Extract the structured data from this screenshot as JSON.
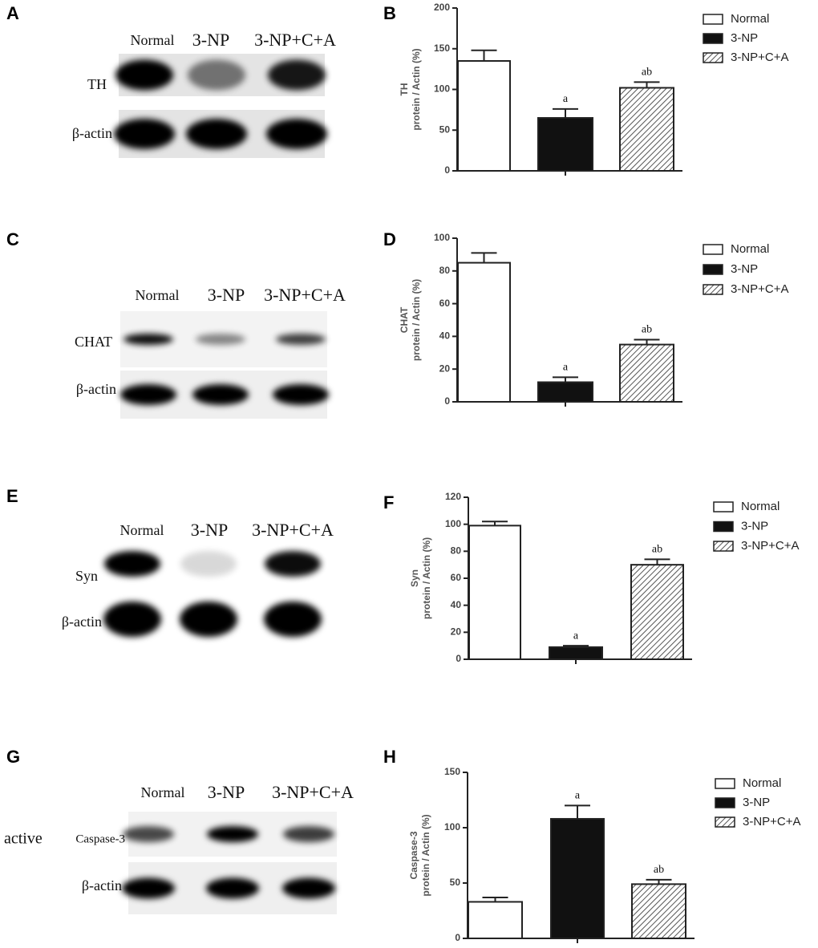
{
  "blots": [
    {
      "panel": "A",
      "lanes": [
        "Normal",
        "3-NP",
        "3-NP+C+A"
      ],
      "rows": [
        "TH",
        "β-actin"
      ]
    },
    {
      "panel": "C",
      "lanes": [
        "Normal",
        "3-NP",
        "3-NP+C+A"
      ],
      "rows": [
        "CHAT",
        "β-actin"
      ]
    },
    {
      "panel": "E",
      "lanes": [
        "Normal",
        "3-NP",
        "3-NP+C+A"
      ],
      "rows": [
        "Syn",
        "β-actin"
      ]
    },
    {
      "panel": "G",
      "lanes": [
        "Normal",
        "3-NP",
        "3-NP+C+A"
      ],
      "rows": [
        "Caspase-3",
        "β-actin"
      ],
      "row_prefix": "active"
    }
  ],
  "chart_data": [
    {
      "type": "bar",
      "panel": "B",
      "ylabel": [
        "TH",
        "protein / Actin (%)"
      ],
      "ylim": [
        0,
        200
      ],
      "yticks": [
        0,
        50,
        100,
        150,
        200
      ],
      "series": [
        {
          "name": "Normal",
          "color": "#ffffff",
          "values": [
            135
          ],
          "errors": [
            13
          ]
        },
        {
          "name": "3-NP",
          "color": "#111111",
          "values": [
            65
          ],
          "errors": [
            11
          ],
          "annotation": "a"
        },
        {
          "name": "3-NP+C+A",
          "color": "#ffffff",
          "pattern": "hatch",
          "values": [
            102
          ],
          "errors": [
            7
          ],
          "annotation": "ab"
        }
      ]
    },
    {
      "type": "bar",
      "panel": "D",
      "ylabel": [
        "CHAT",
        "protein / Actin (%)"
      ],
      "ylim": [
        0,
        100
      ],
      "yticks": [
        0,
        20,
        40,
        60,
        80,
        100
      ],
      "series": [
        {
          "name": "Normal",
          "color": "#ffffff",
          "values": [
            85
          ],
          "errors": [
            6
          ]
        },
        {
          "name": "3-NP",
          "color": "#111111",
          "values": [
            12
          ],
          "errors": [
            3
          ],
          "annotation": "a"
        },
        {
          "name": "3-NP+C+A",
          "color": "#ffffff",
          "pattern": "hatch",
          "values": [
            35
          ],
          "errors": [
            3
          ],
          "annotation": "ab"
        }
      ]
    },
    {
      "type": "bar",
      "panel": "F",
      "ylabel": [
        "Syn",
        "protein / Actin (%)"
      ],
      "ylim": [
        0,
        120
      ],
      "yticks": [
        0,
        20,
        40,
        60,
        80,
        100,
        120
      ],
      "series": [
        {
          "name": "Normal",
          "color": "#ffffff",
          "values": [
            99
          ],
          "errors": [
            3
          ]
        },
        {
          "name": "3-NP",
          "color": "#111111",
          "values": [
            9
          ],
          "errors": [
            1
          ],
          "annotation": "a"
        },
        {
          "name": "3-NP+C+A",
          "color": "#ffffff",
          "pattern": "hatch",
          "values": [
            70
          ],
          "errors": [
            4
          ],
          "annotation": "ab"
        }
      ]
    },
    {
      "type": "bar",
      "panel": "H",
      "ylabel": [
        "Caspase-3",
        "protein / Actin (%)"
      ],
      "ylim": [
        0,
        150
      ],
      "yticks": [
        0,
        50,
        100,
        150
      ],
      "series": [
        {
          "name": "Normal",
          "color": "#ffffff",
          "values": [
            33
          ],
          "errors": [
            4
          ]
        },
        {
          "name": "3-NP",
          "color": "#111111",
          "values": [
            108
          ],
          "errors": [
            12
          ],
          "annotation": "a"
        },
        {
          "name": "3-NP+C+A",
          "color": "#ffffff",
          "pattern": "hatch",
          "values": [
            49
          ],
          "errors": [
            4
          ],
          "annotation": "ab"
        }
      ]
    }
  ]
}
